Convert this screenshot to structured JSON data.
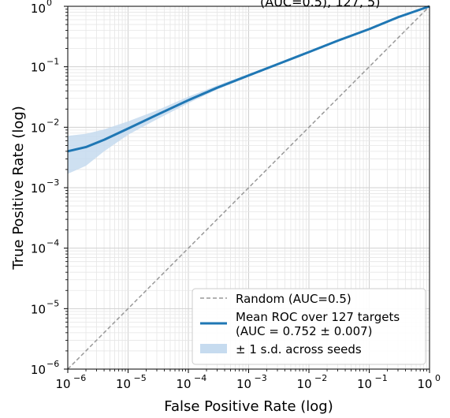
{
  "chart_data": {
    "type": "line",
    "title_partial": "(AUC=0.5), 127, 5)",
    "xlabel": "False Positive Rate (log)",
    "ylabel": "True Positive Rate (log)",
    "xscale": "log",
    "yscale": "log",
    "xlim": [
      1e-06,
      1
    ],
    "ylim": [
      1e-06,
      1
    ],
    "x_ticks": [
      1e-06,
      1e-05,
      0.0001,
      0.001,
      0.01,
      0.1,
      1
    ],
    "y_ticks": [
      1e-06,
      1e-05,
      0.0001,
      0.001,
      0.01,
      0.1,
      1
    ],
    "grid": true,
    "legend_position": "lower-right",
    "series": [
      {
        "name": "Random (AUC=0.5)",
        "style": "dashed",
        "color": "#999999",
        "x": [
          1e-06,
          1
        ],
        "y": [
          1e-06,
          1
        ]
      },
      {
        "name": "Mean ROC over 127 targets",
        "name_line2": "(AUC = 0.752 ± 0.007)",
        "style": "solid",
        "color": "#1f77b4",
        "x": [
          1e-06,
          2e-06,
          4e-06,
          1e-05,
          3e-05,
          0.0001,
          0.0003,
          0.001,
          0.003,
          0.01,
          0.03,
          0.1,
          0.3,
          1
        ],
        "y": [
          0.004,
          0.0047,
          0.0062,
          0.0095,
          0.016,
          0.028,
          0.045,
          0.072,
          0.11,
          0.175,
          0.27,
          0.42,
          0.66,
          1.0
        ]
      },
      {
        "name": "± 1 s.d. across seeds",
        "style": "band",
        "color": "#c6dbef",
        "x": [
          1e-06,
          2e-06,
          4e-06,
          1e-05,
          3e-05,
          0.0001,
          0.0003,
          0.001,
          0.003,
          0.01,
          0.03,
          0.1,
          0.3,
          1
        ],
        "y_lower": [
          0.0017,
          0.0023,
          0.004,
          0.0075,
          0.0135,
          0.025,
          0.042,
          0.068,
          0.106,
          0.17,
          0.265,
          0.415,
          0.655,
          1.0
        ],
        "y_upper": [
          0.0072,
          0.0078,
          0.0092,
          0.0125,
          0.019,
          0.032,
          0.049,
          0.076,
          0.114,
          0.18,
          0.275,
          0.425,
          0.665,
          1.0
        ]
      }
    ]
  },
  "x_tick_labels": [
    "10",
    "10",
    "10",
    "10",
    "10",
    "10",
    "10"
  ],
  "x_tick_exps": [
    "−6",
    "−5",
    "−4",
    "−3",
    "−2",
    "−1",
    "0"
  ],
  "y_tick_labels": [
    "10",
    "10",
    "10",
    "10",
    "10",
    "10",
    "10"
  ],
  "y_tick_exps": [
    "−6",
    "−5",
    "−4",
    "−3",
    "−2",
    "−1",
    "0"
  ]
}
